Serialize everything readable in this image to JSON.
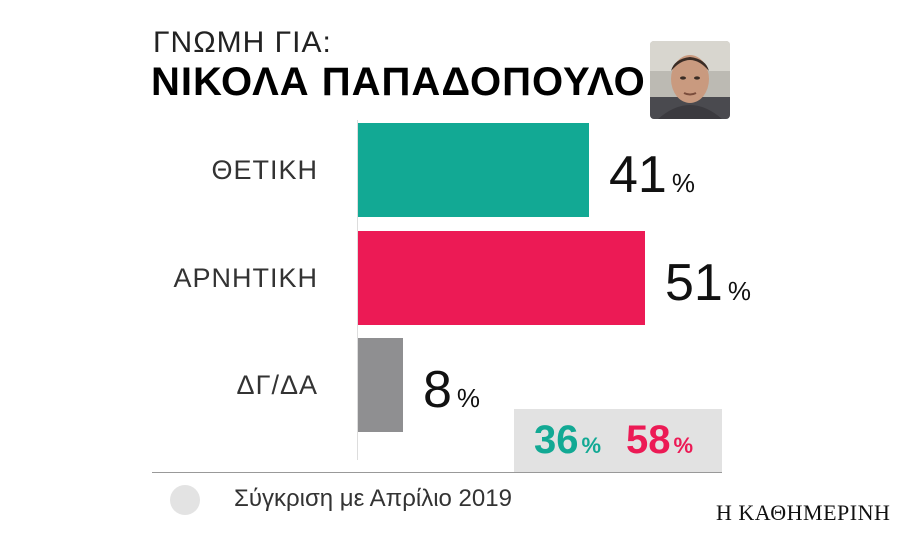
{
  "header": {
    "subtitle": "ΓΝΩΜΗ ΓΙΑ:",
    "title": "ΝΙΚΟΛΑ ΠΑΠΑΔΟΠΟΥΛΟ"
  },
  "chart_data": {
    "type": "bar",
    "orientation": "horizontal",
    "categories": [
      "ΘΕΤΙΚΗ",
      "ΑΡΝΗΤΙΚΗ",
      "ΔΓ/ΔΑ"
    ],
    "values": [
      41,
      51,
      8
    ],
    "value_labels": [
      "41",
      "51",
      "8"
    ],
    "unit": "%",
    "colors": [
      "#12a994",
      "#ec1a55",
      "#8f8f91"
    ],
    "xlim": [
      0,
      51
    ],
    "comparison": {
      "label": "Σύγκριση με Απρίλιο 2019",
      "values": [
        {
          "category": "ΘΕΤΙΚΗ",
          "value": 36,
          "label": "36",
          "color": "#12a994"
        },
        {
          "category": "ΑΡΝΗΤΙΚΗ",
          "value": 58,
          "label": "58",
          "color": "#ec1a55"
        }
      ]
    }
  },
  "footer": {
    "brand": "Η ΚΑΘΗΜΕΡΙΝΗ"
  }
}
